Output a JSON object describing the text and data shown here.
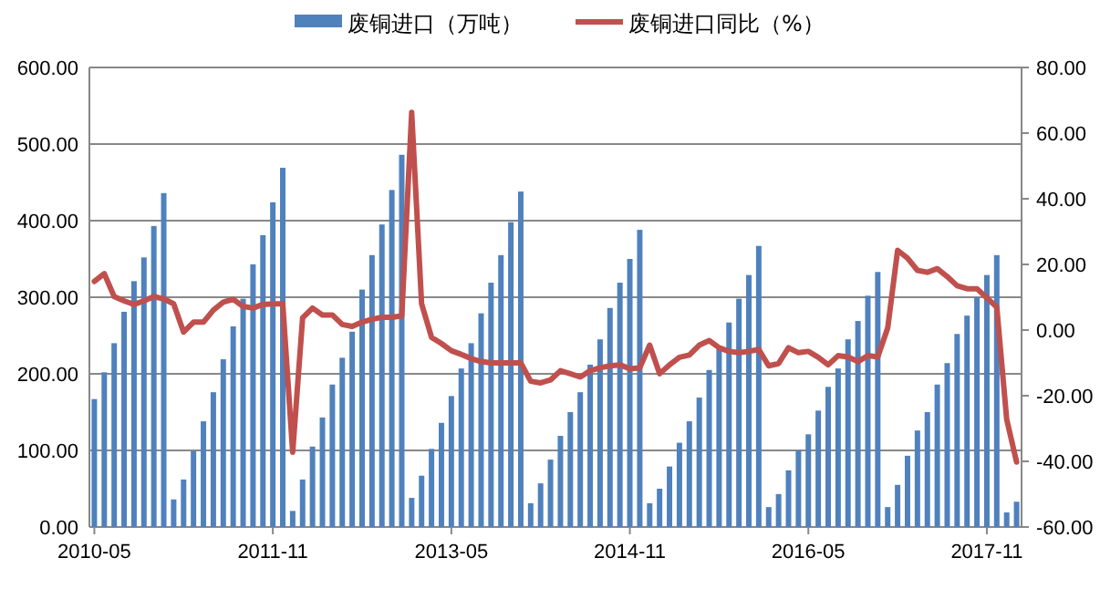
{
  "chart_data": {
    "type": "bar",
    "categories": [
      "2010-05",
      null,
      null,
      null,
      null,
      null,
      null,
      null,
      null,
      null,
      null,
      null,
      null,
      null,
      null,
      null,
      null,
      null,
      "2011-11",
      null,
      null,
      null,
      null,
      null,
      null,
      null,
      null,
      null,
      null,
      null,
      null,
      null,
      null,
      null,
      null,
      null,
      "2013-05",
      null,
      null,
      null,
      null,
      null,
      null,
      null,
      null,
      null,
      null,
      null,
      null,
      null,
      null,
      null,
      null,
      null,
      "2014-11",
      null,
      null,
      null,
      null,
      null,
      null,
      null,
      null,
      null,
      null,
      null,
      null,
      null,
      null,
      null,
      null,
      null,
      "2016-05",
      null,
      null,
      null,
      null,
      null,
      null,
      null,
      null,
      null,
      null,
      null,
      null,
      null,
      null,
      null,
      null,
      null,
      "2017-11",
      null,
      null,
      null
    ],
    "series": [
      {
        "name": "废铜进口（万吨）",
        "color": "#4f81bd",
        "values": [
          167,
          202,
          240,
          281,
          321,
          352,
          393,
          436,
          36,
          62,
          99,
          138,
          176,
          219,
          262,
          298,
          343,
          381,
          424,
          469,
          21,
          62,
          105,
          143,
          186,
          221,
          255,
          310,
          355,
          395,
          440,
          486,
          38,
          67,
          102,
          136,
          171,
          207,
          240,
          279,
          319,
          355,
          398,
          438,
          31,
          57,
          88,
          119,
          150,
          176,
          212,
          245,
          286,
          319,
          350,
          388,
          31,
          50,
          79,
          110,
          138,
          169,
          205,
          236,
          267,
          298,
          329,
          367,
          26,
          43,
          74,
          100,
          121,
          152,
          183,
          207,
          245,
          269,
          302,
          333,
          26,
          55,
          93,
          126,
          150,
          186,
          214,
          252,
          276,
          300,
          329,
          355,
          19,
          33
        ]
      },
      {
        "name": "废铜进口同比（%）",
        "type": "line",
        "axis": "y2",
        "color": "#c0504d",
        "values": [
          14.8,
          17.2,
          10.2,
          8.9,
          7.8,
          8.9,
          10.2,
          9.5,
          8.0,
          -0.6,
          2.4,
          2.4,
          6.1,
          8.5,
          9.4,
          7.2,
          6.7,
          7.8,
          8.0,
          8.0,
          -37.2,
          3.7,
          6.7,
          4.6,
          4.6,
          1.7,
          1.1,
          2.4,
          3.3,
          3.9,
          3.9,
          4.3,
          66.3,
          8.0,
          -2.2,
          -4.1,
          -6.3,
          -7.4,
          -8.7,
          -9.6,
          -10.0,
          -10.0,
          -10.0,
          -10.0,
          -15.6,
          -16.1,
          -15.2,
          -12.4,
          -13.3,
          -14.3,
          -12.4,
          -11.5,
          -10.9,
          -10.6,
          -11.8,
          -11.5,
          -4.6,
          -13.3,
          -10.6,
          -8.3,
          -7.6,
          -4.6,
          -3.2,
          -5.4,
          -6.5,
          -6.9,
          -6.5,
          -5.9,
          -10.9,
          -10.2,
          -5.4,
          -6.9,
          -6.5,
          -8.3,
          -10.6,
          -7.8,
          -8.2,
          -9.6,
          -7.8,
          -8.2,
          0.6,
          24.3,
          21.9,
          18.2,
          17.6,
          18.7,
          16.3,
          13.5,
          12.6,
          12.6,
          9.8,
          7.0,
          -27.2,
          -40.2
        ]
      }
    ],
    "ylim": [
      0,
      600
    ],
    "yticks": [
      {
        "value": 0,
        "label": "0.00"
      },
      {
        "value": 100,
        "label": "100.00"
      },
      {
        "value": 200,
        "label": "200.00"
      },
      {
        "value": 300,
        "label": "300.00"
      },
      {
        "value": 400,
        "label": "400.00"
      },
      {
        "value": 500,
        "label": "500.00"
      },
      {
        "value": 600,
        "label": "600.00"
      }
    ],
    "y2lim": [
      -60,
      80
    ],
    "y2ticks": [
      {
        "value": -60,
        "label": "-60.00"
      },
      {
        "value": -40,
        "label": "-40.00"
      },
      {
        "value": -20,
        "label": "-20.00"
      },
      {
        "value": 0,
        "label": "0.00"
      },
      {
        "value": 20,
        "label": "20.00"
      },
      {
        "value": 40,
        "label": "40.00"
      },
      {
        "value": 60,
        "label": "60.00"
      },
      {
        "value": 80,
        "label": "80.00"
      }
    ],
    "grid": "y",
    "legend": "top",
    "marker": "none",
    "line_style": "solid"
  }
}
